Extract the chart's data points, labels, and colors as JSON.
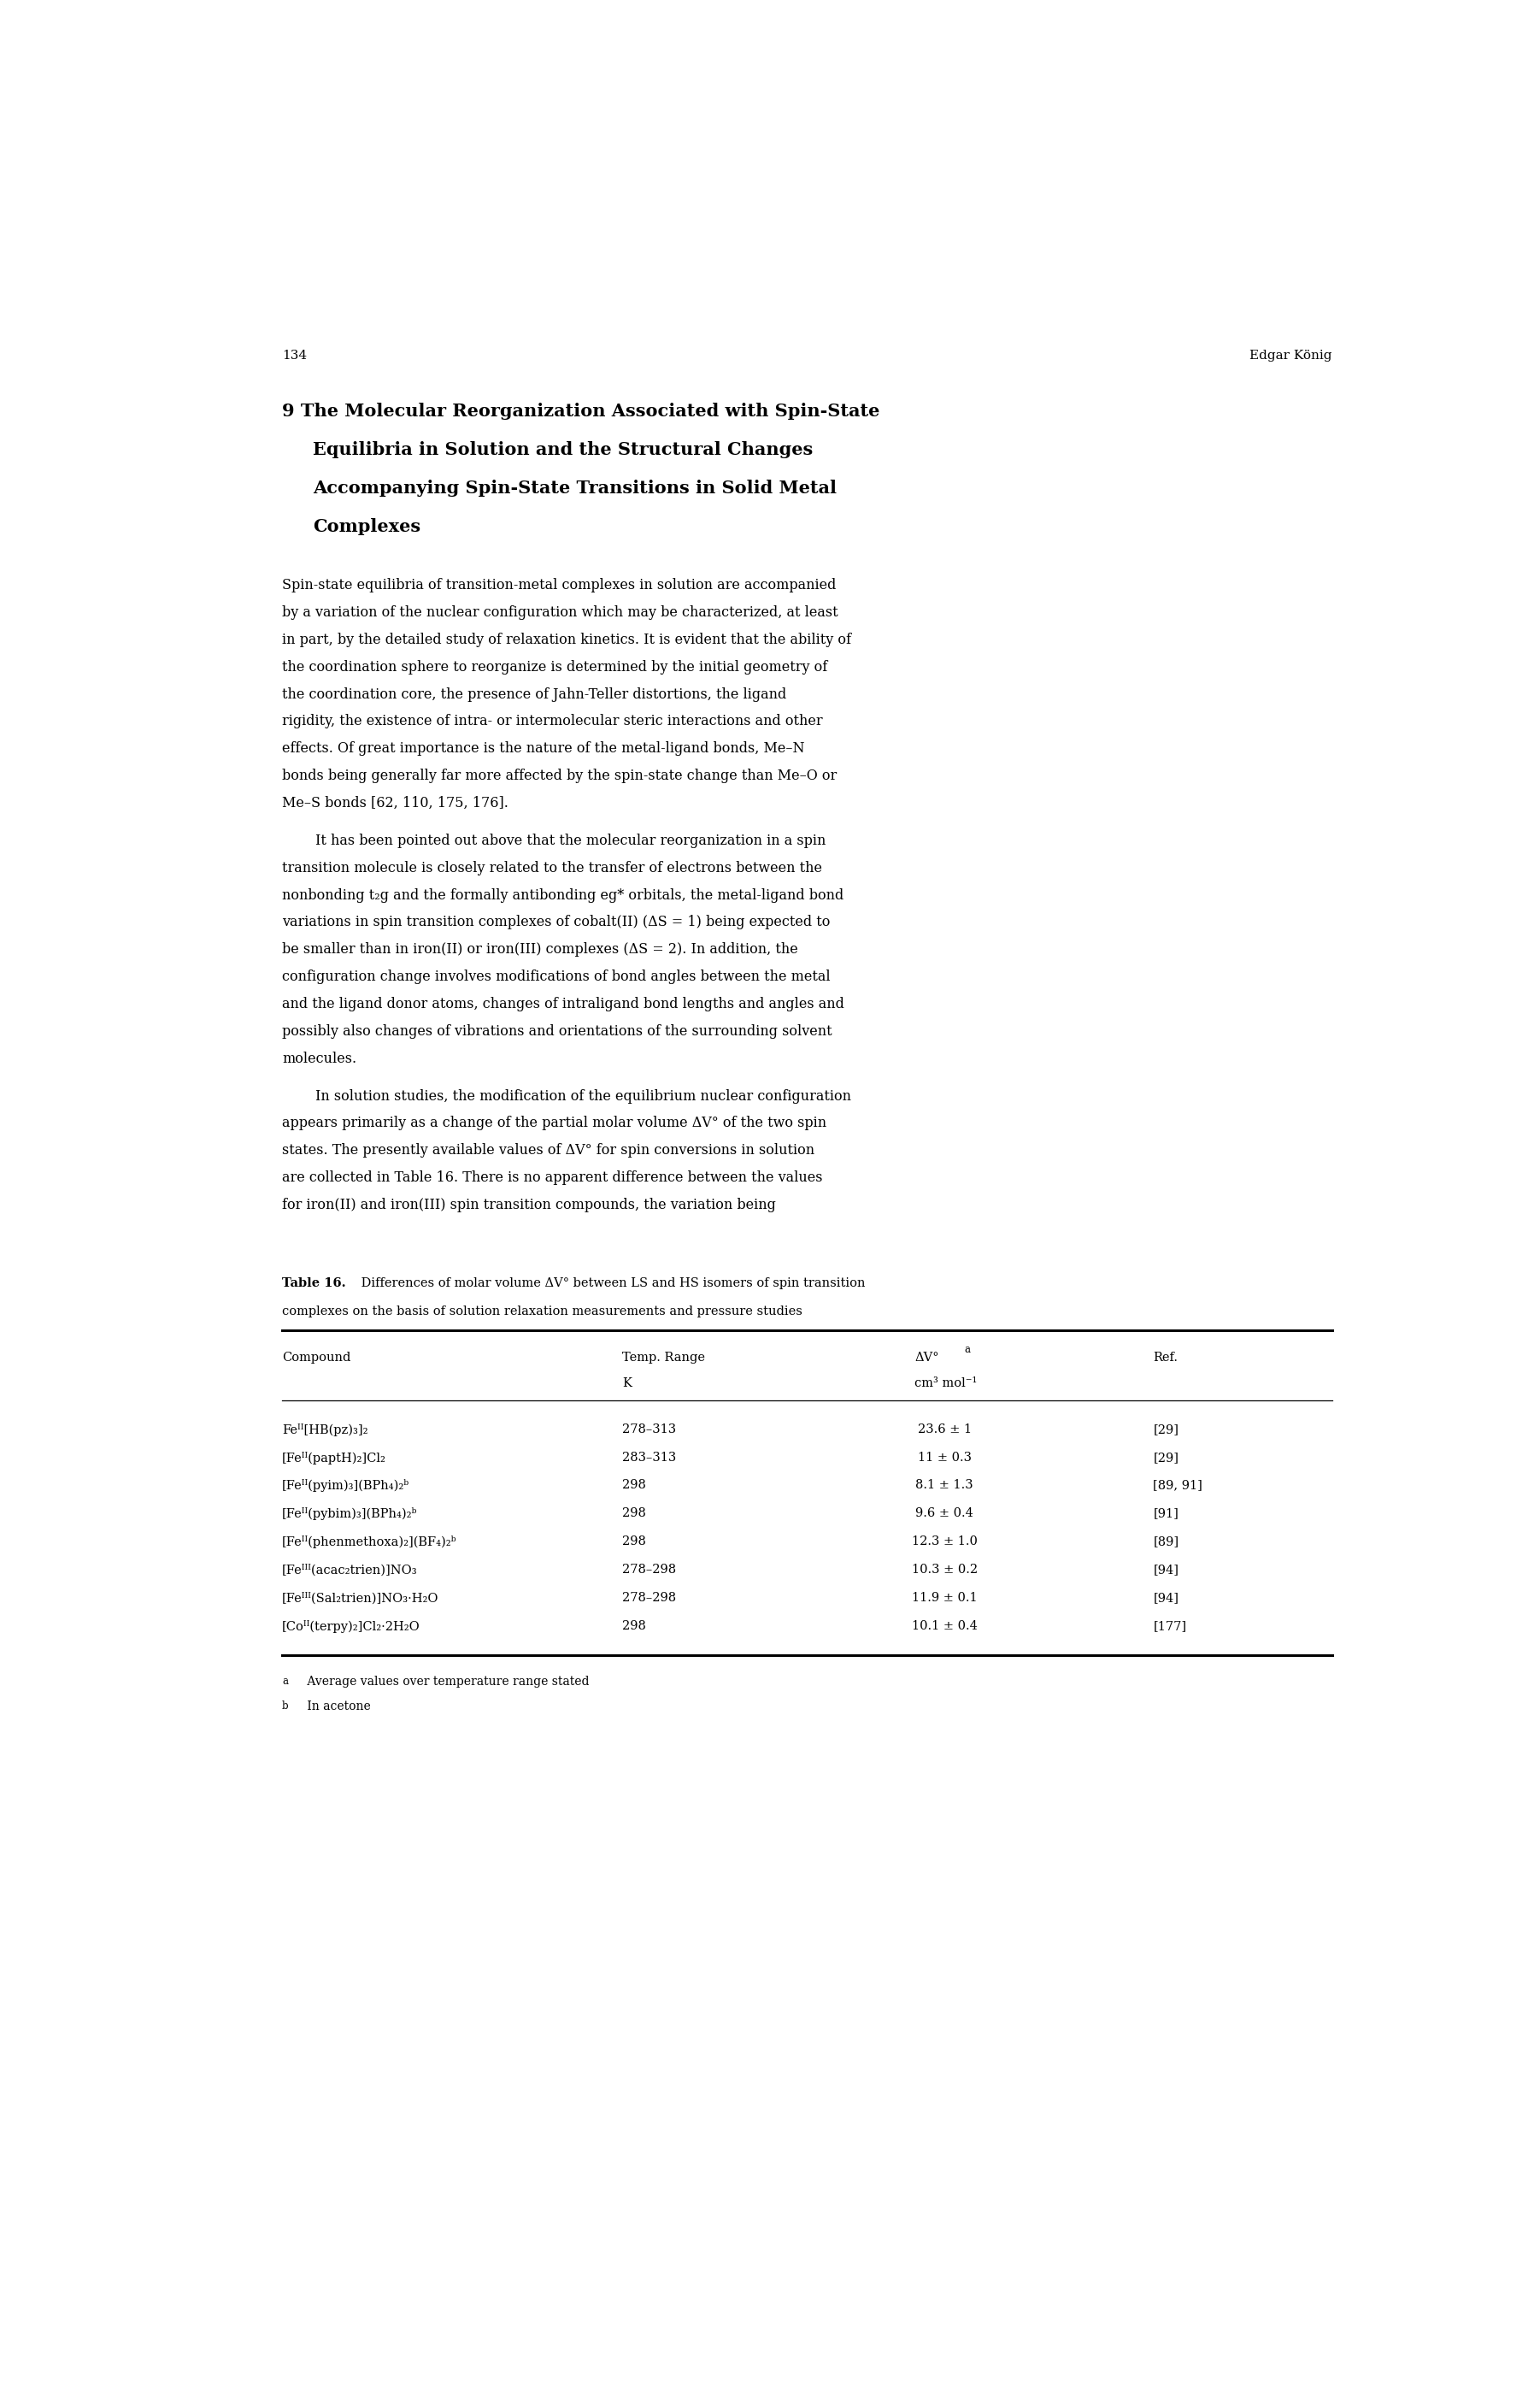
{
  "page_number": "134",
  "page_author": "Edgar König",
  "chapter_title_lines": [
    "9 The Molecular Reorganization Associated with Spin-State",
    "Equilibria in Solution and the Structural Changes",
    "Accompanying Spin-State Transitions in Solid Metal",
    "Complexes"
  ],
  "paragraph1_lines": [
    "Spin-state equilibria of transition-metal complexes in solution are accompanied",
    "by a variation of the nuclear configuration which may be characterized, at least",
    "in part, by the detailed study of relaxation kinetics. It is evident that the ability of",
    "the coordination sphere to reorganize is determined by the initial geometry of",
    "the coordination core, the presence of Jahn-Teller distortions, the ligand",
    "rigidity, the existence of intra- or intermolecular steric interactions and other",
    "effects. Of great importance is the nature of the metal-ligand bonds, Me–N",
    "bonds being generally far more affected by the spin-state change than Me–O or",
    "Me–S bonds [62, 110, 175, 176]."
  ],
  "paragraph2_lines": [
    "It has been pointed out above that the molecular reorganization in a spin",
    "transition molecule is closely related to the transfer of electrons between the",
    "nonbonding t₂g and the formally antibonding eg* orbitals, the metal-ligand bond",
    "variations in spin transition complexes of cobalt(II) (ΔS = 1) being expected to",
    "be smaller than in iron(II) or iron(III) complexes (ΔS = 2). In addition, the",
    "configuration change involves modifications of bond angles between the metal",
    "and the ligand donor atoms, changes of intraligand bond lengths and angles and",
    "possibly also changes of vibrations and orientations of the surrounding solvent",
    "molecules."
  ],
  "paragraph3_lines": [
    "In solution studies, the modification of the equilibrium nuclear configuration",
    "appears primarily as a change of the partial molar volume ΔV° of the two spin",
    "states. The presently available values of ΔV° for spin conversions in solution",
    "are collected in Table 16. There is no apparent difference between the values",
    "for iron(II) and iron(III) spin transition compounds, the variation being"
  ],
  "table_caption_bold": "Table 16.",
  "table_caption_rest": " Differences of molar volume ΔV° between LS and HS isomers of spin transition",
  "table_caption_line2": "complexes on the basis of solution relaxation measurements and pressure studies",
  "col_header_compound": "Compound",
  "col_header_temp1": "Temp. Range",
  "col_header_temp2": "K",
  "col_header_dv1": "ΔV°",
  "col_header_dv1_super": "a",
  "col_header_dv2": "cm³ mol⁻¹",
  "col_header_ref": "Ref.",
  "compounds": [
    "Feᴵᴵ[HB(pz)₃]₂",
    "[Feᴵᴵ(paptH)₂]Cl₂",
    "[Feᴵᴵ(pyim)₃](BPh₄)₂ᵇ",
    "[Feᴵᴵ(pybim)₃](BPh₄)₂ᵇ",
    "[Feᴵᴵ(phenmethoxa)₂](BF₄)₂ᵇ",
    "[Feᴵᴵᴵ(acac₂trien)]NO₃",
    "[Feᴵᴵᴵ(Sal₂trien)]NO₃·H₂O",
    "[Coᴵᴵ(terpy)₂]Cl₂·2H₂O"
  ],
  "temp_ranges": [
    "278–313",
    "283–313",
    "298",
    "298",
    "298",
    "278–298",
    "278–298",
    "298"
  ],
  "delta_v": [
    "23.6 ± 1",
    "11 ± 0.3",
    "8.1 ± 1.3",
    "9.6 ± 0.4",
    "12.3 ± 1.0",
    "10.3 ± 0.2",
    "11.9 ± 0.1",
    "10.1 ± 0.4"
  ],
  "refs": [
    "[29]",
    "[29]",
    "[89, 91]",
    "[91]",
    "[89]",
    "[94]",
    "[94]",
    "[177]"
  ],
  "footnote_a": "a  Average values over temperature range stated",
  "footnote_b": "b  In acetone",
  "bg_color": "#ffffff",
  "text_color": "#000000"
}
